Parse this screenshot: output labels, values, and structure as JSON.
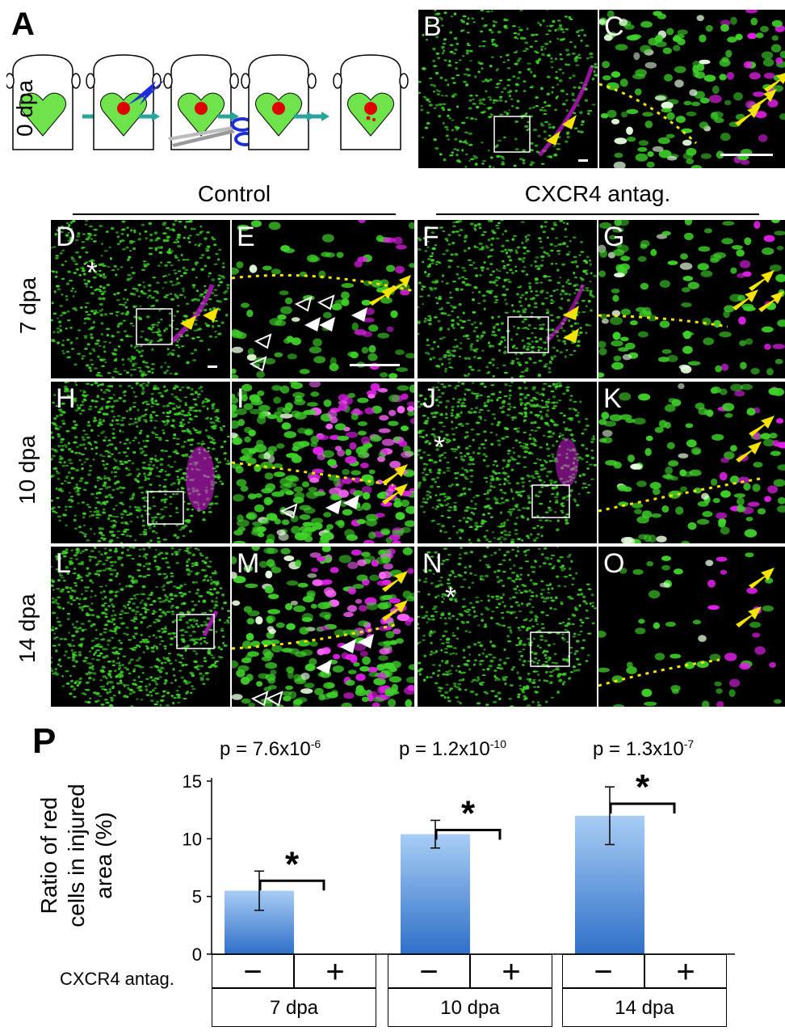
{
  "panels": {
    "A": "A",
    "B": "B",
    "C": "C",
    "D": "D",
    "E": "E",
    "F": "F",
    "G": "G",
    "H": "H",
    "I": "I",
    "J": "J",
    "K": "K",
    "L": "L",
    "M": "M",
    "N": "N",
    "O": "O",
    "P": "P"
  },
  "row_labels": [
    "0 dpa",
    "7 dpa",
    "10 dpa",
    "14 dpa"
  ],
  "group_labels": {
    "control": "Control",
    "antag": "CXCR4 antag."
  },
  "asterisk": "*",
  "colors": {
    "green": "#3fd12a",
    "magenta": "#e020e8",
    "yellow": "#f5e400",
    "bar_top": "#a8cdf5",
    "bar_bottom": "#2f70c8"
  },
  "chart_data": {
    "type": "bar",
    "ylabel": "Ratio of red cells in injured area (%)",
    "ylabel_lines": [
      "Ratio of red",
      "cells in injured",
      "area (%)"
    ],
    "ylim": [
      0,
      15
    ],
    "yticks": [
      "0",
      "5",
      "10",
      "15"
    ],
    "groups": [
      "7 dpa",
      "10 dpa",
      "14 dpa"
    ],
    "conditions": [
      "−",
      "+"
    ],
    "condition_row_label": "CXCR4 antag.",
    "values": [
      [
        5.5,
        0
      ],
      [
        10.4,
        0
      ],
      [
        12.0,
        0
      ]
    ],
    "errors": [
      [
        1.7,
        0
      ],
      [
        1.2,
        0
      ],
      [
        2.5,
        0
      ]
    ],
    "p_values": [
      {
        "base": "p = 7.6x10",
        "exp": "-6"
      },
      {
        "base": "p = 1.2x10",
        "exp": "-10"
      },
      {
        "base": "p = 1.3x10",
        "exp": "-7"
      }
    ],
    "significance": [
      "*",
      "*",
      "*"
    ]
  }
}
